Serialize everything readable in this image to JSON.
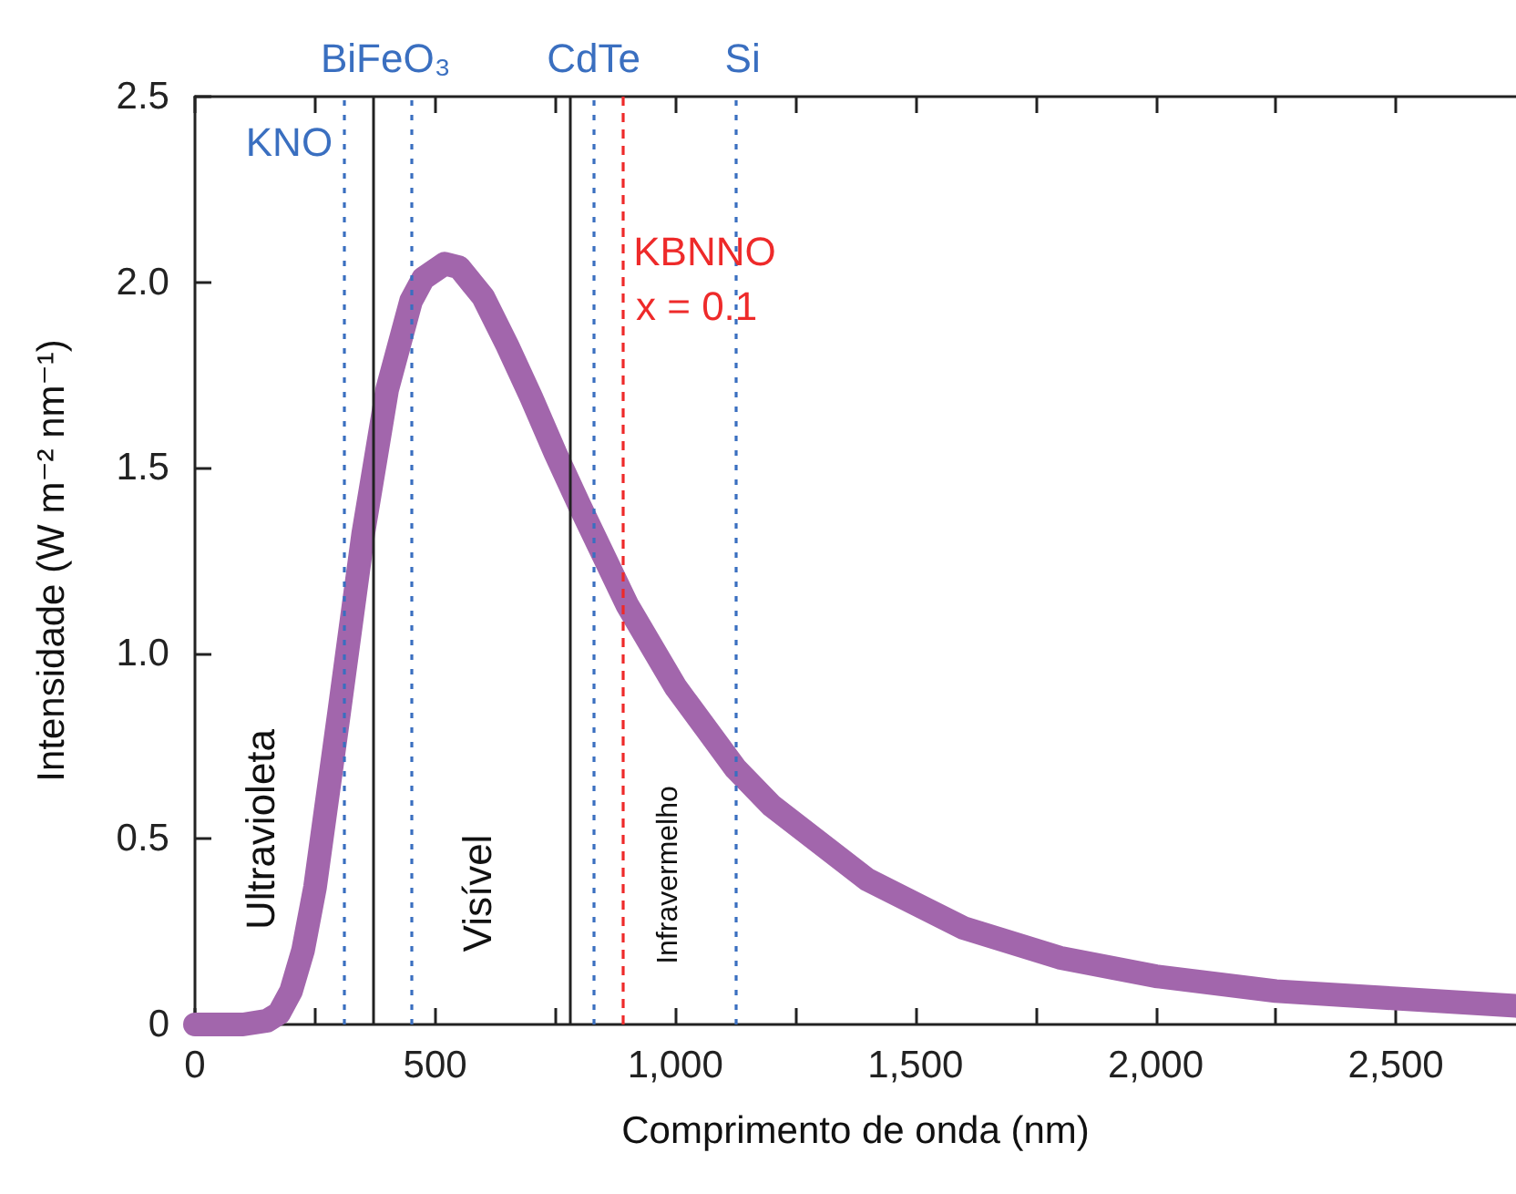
{
  "chart_data": {
    "type": "line",
    "xlabel": "Comprimento de onda (nm)",
    "ylabel": "Intensidade (W m⁻² nm⁻¹)",
    "x": [
      0,
      100,
      150,
      175,
      200,
      225,
      250,
      300,
      350,
      400,
      450,
      475,
      520,
      550,
      600,
      650,
      700,
      750,
      800,
      900,
      1000,
      1125,
      1200,
      1400,
      1600,
      1800,
      2000,
      2250,
      2500,
      2750
    ],
    "series": [
      {
        "color": "#a266ac",
        "values": [
          0,
          0,
          0.01,
          0.03,
          0.09,
          0.2,
          0.37,
          0.84,
          1.32,
          1.71,
          1.95,
          2.01,
          2.05,
          2.04,
          1.96,
          1.83,
          1.69,
          1.54,
          1.4,
          1.13,
          0.91,
          0.69,
          0.59,
          0.39,
          0.26,
          0.18,
          0.13,
          0.09,
          0.07,
          0.05
        ]
      }
    ],
    "xlim": [
      0,
      2750
    ],
    "xticks": [
      0,
      {
        "value": 250,
        "label": null
      },
      500,
      {
        "value": 750,
        "label": null
      },
      {
        "value": 1000,
        "label": "1,000"
      },
      {
        "value": 1250,
        "label": null
      },
      {
        "value": 1500,
        "label": "1,500"
      },
      {
        "value": 1750,
        "label": null
      },
      {
        "value": 2000,
        "label": "2,000"
      },
      {
        "value": 2250,
        "label": null
      },
      {
        "value": 2500,
        "label": "2,500"
      }
    ],
    "ylim": [
      0,
      2.5
    ],
    "yticks": [
      0,
      0.5,
      {
        "value": 1,
        "label": "1.0"
      },
      1.5,
      {
        "value": 2,
        "label": "2.0"
      },
      2.5
    ],
    "ref_lines": [
      {
        "axis": "x",
        "value": 310,
        "label": "KNO",
        "color": "#3a6fc0",
        "line_style": "dotted"
      },
      {
        "axis": "x",
        "value": 370,
        "label": null,
        "color": "#222222",
        "line_style": "solid"
      },
      {
        "axis": "x",
        "value": 450,
        "label": "BiFeO₃",
        "color": "#3a6fc0",
        "line_style": "dotted"
      },
      {
        "axis": "x",
        "value": 780,
        "label": null,
        "color": "#222222",
        "line_style": "solid"
      },
      {
        "axis": "x",
        "value": 830,
        "label": "CdTe",
        "color": "#3a6fc0",
        "line_style": "dotted"
      },
      {
        "axis": "x",
        "value": 890,
        "label": "KBNNO",
        "color": "#ee2a2a",
        "line_style": "dashed"
      },
      {
        "axis": "x",
        "value": 1125,
        "label": "Si",
        "color": "#3a6fc0",
        "line_style": "dotted"
      }
    ],
    "annotations": [
      "Ultravioleta",
      "Visível",
      "Infravermelho",
      "x = 0.1"
    ]
  }
}
